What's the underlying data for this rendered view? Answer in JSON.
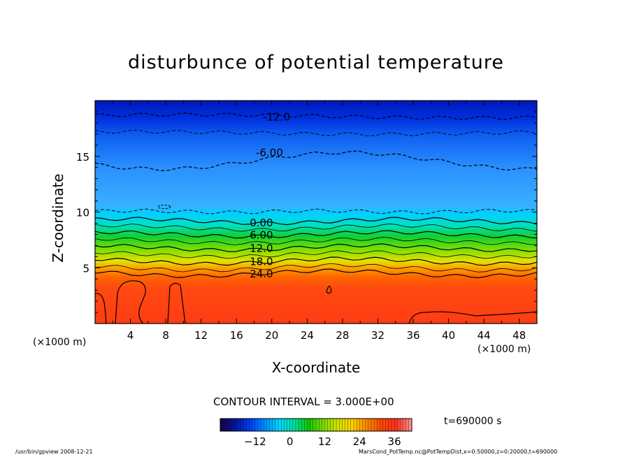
{
  "title": "disturbunce of potential temperature",
  "chart_data": {
    "type": "heatmap",
    "title": "disturbunce of potential temperature",
    "xlabel": "X-coordinate",
    "ylabel": "Z-coordinate",
    "x_unit": "(×1000 m)",
    "y_unit": "(×1000 m)",
    "xlim": [
      0,
      50
    ],
    "ylim": [
      0,
      20
    ],
    "x_ticks": [
      4,
      8,
      12,
      16,
      20,
      24,
      28,
      32,
      36,
      40,
      44,
      48
    ],
    "y_ticks": [
      5,
      10,
      15
    ],
    "contour_interval_text": "CONTOUR INTERVAL = 3.000E+00",
    "contour_labels": [
      {
        "text": "-12.0",
        "x": 19,
        "z": 18.6
      },
      {
        "text": "-6.00",
        "x": 18.2,
        "z": 15.4
      },
      {
        "text": "0.00",
        "x": 17.5,
        "z": 9.1
      },
      {
        "text": "6.00",
        "x": 17.5,
        "z": 8.0
      },
      {
        "text": "12.0",
        "x": 17.5,
        "z": 6.8
      },
      {
        "text": "18.0",
        "x": 17.5,
        "z": 5.6
      },
      {
        "text": "24.0",
        "x": 17.5,
        "z": 4.5
      }
    ],
    "time_label": "t=690000 s",
    "colorbar": {
      "ticks": [
        -12,
        0,
        12,
        24,
        36
      ],
      "range": [
        -24,
        42
      ],
      "colors": [
        "#1a0050",
        "#001aa0",
        "#0040ff",
        "#0090ff",
        "#00d8ff",
        "#00e0a0",
        "#10c800",
        "#7ddc00",
        "#d6e000",
        "#ffd000",
        "#ff8a00",
        "#ff4a00",
        "#ff3020",
        "#ff8a8a"
      ]
    },
    "grid": false
  },
  "footer": {
    "left": "/usr/bin/gpview   2008-12-21",
    "right": "MarsCond_PotTemp.nc@PotTempDist,x=0:50000,z=0:20000,t=690000"
  }
}
